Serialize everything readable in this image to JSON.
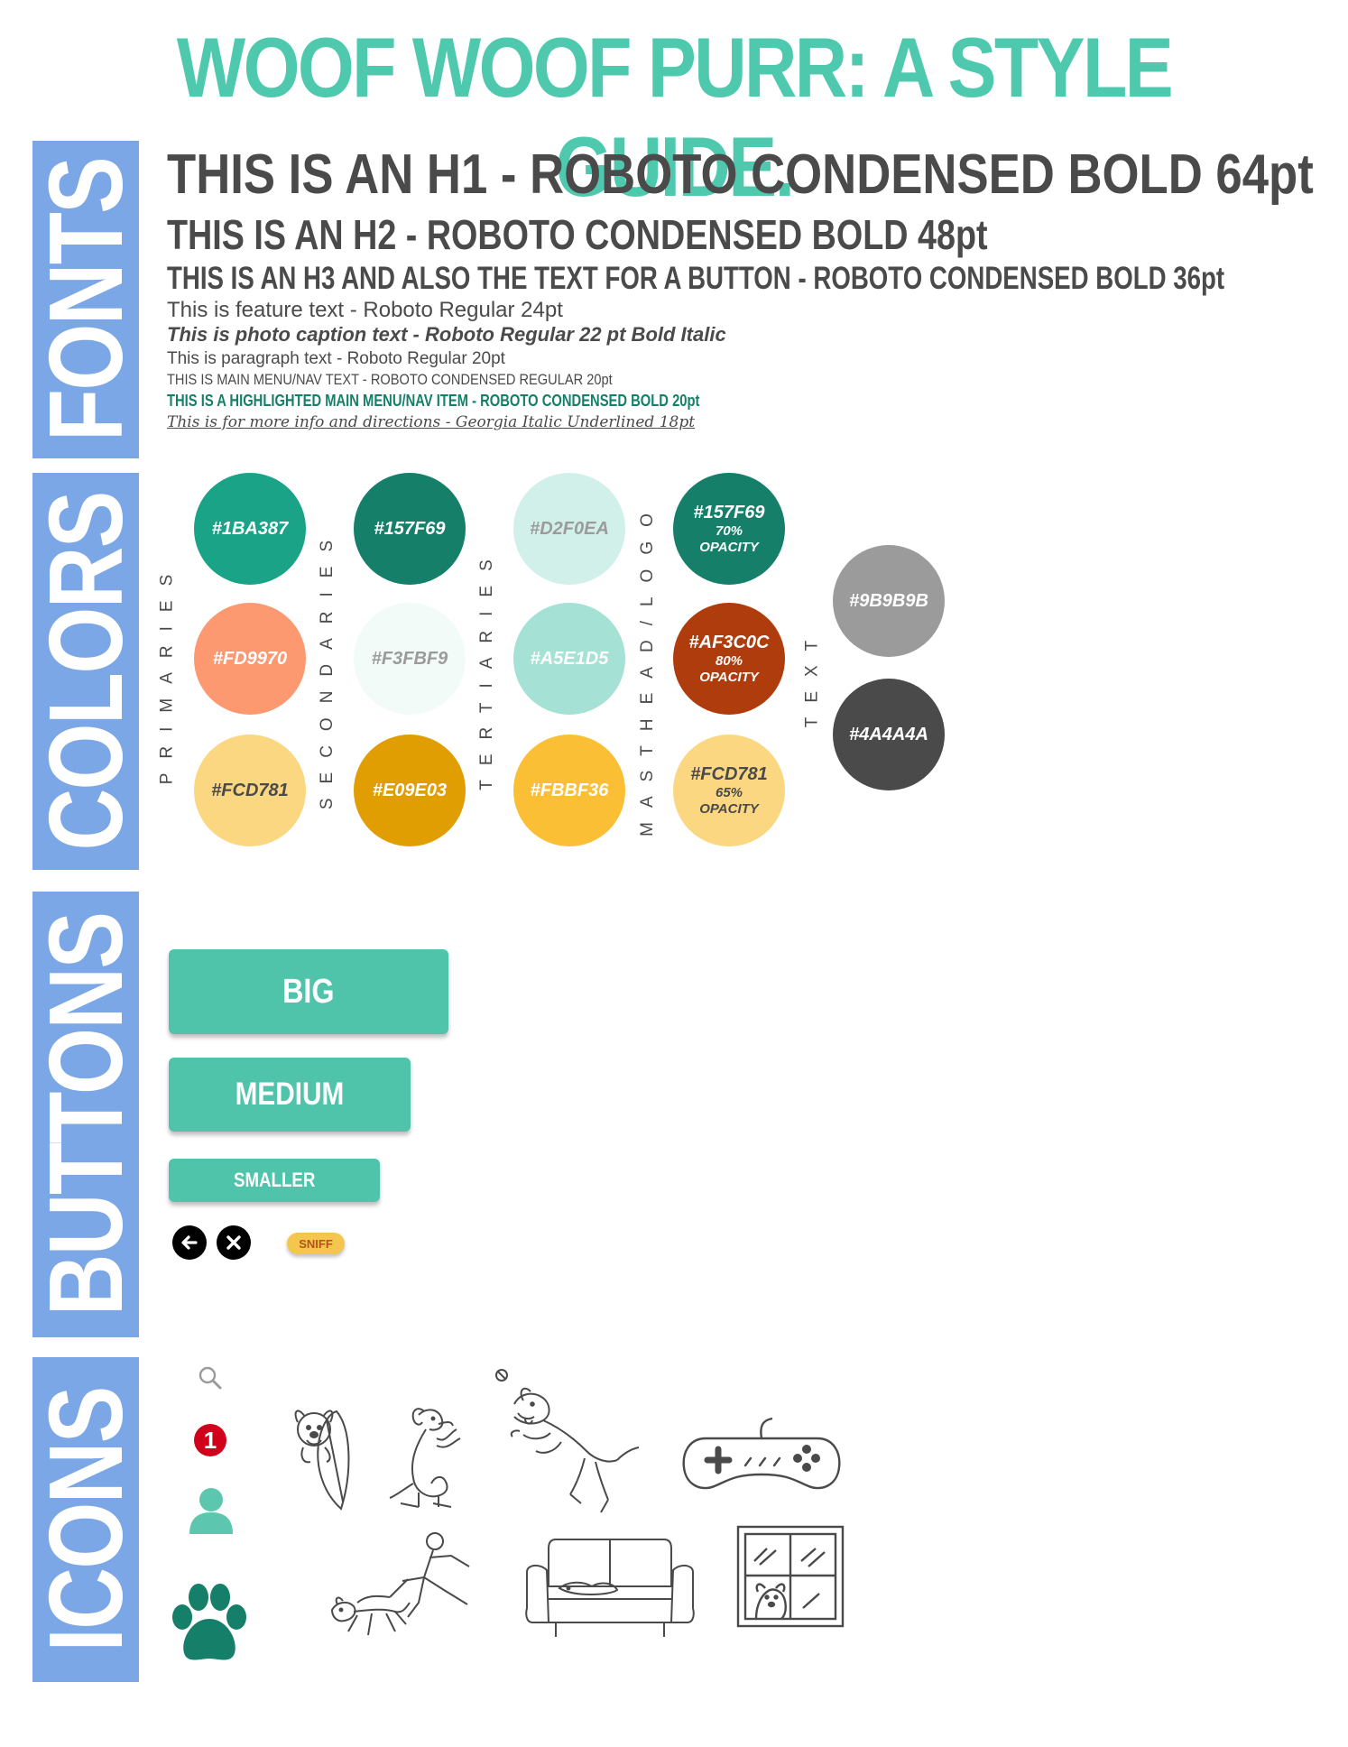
{
  "title": "WOOF WOOF PURR: A STYLE GUIDE.",
  "sections": {
    "fonts": "FONTS",
    "colors": "COLORS",
    "buttons": "BUTTONS",
    "icons": "ICONS"
  },
  "fonts": {
    "h1": "THIS IS AN H1 - ROBOTO CONDENSED BOLD 64pt",
    "h2": "THIS IS AN H2 - ROBOTO CONDENSED BOLD 48pt",
    "h3": "THIS IS AN H3 AND ALSO THE TEXT FOR A BUTTON - ROBOTO CONDENSED BOLD 36pt",
    "feature": "This is feature text - Roboto Regular 24pt",
    "caption": "This is photo caption text - Roboto Regular 22 pt  Bold Italic",
    "paragraph": "This is paragraph text - Roboto Regular 20pt",
    "nav": "THIS IS MAIN MENU/NAV TEXT - ROBOTO CONDENSED REGULAR 20pt",
    "nav_highlight": "THIS IS A HIGHLIGHTED MAIN MENU/NAV ITEM - ROBOTO CONDENSED BOLD 20pt",
    "info": "This is for more info and directions - Georgia Italic Underlined 18pt"
  },
  "color_groups": {
    "primaries": "PRIMARIES",
    "secondaries": "SECONDARIES",
    "tertiaries": "TERTIARIES",
    "masthead": "MASTHEAD/LOGO",
    "text": "TEXT"
  },
  "colors": {
    "primaries": [
      {
        "hex": "#1BA387",
        "color": "#1BA387",
        "text_color": "#ffffff"
      },
      {
        "hex": "#FD9970",
        "color": "#FD9970",
        "text_color": "#ffffff"
      },
      {
        "hex": "#FCD781",
        "color": "#FCD781",
        "text_color": "#4a4a4a"
      }
    ],
    "secondaries": [
      {
        "hex": "#157F69",
        "color": "#157F69",
        "text_color": "#ffffff"
      },
      {
        "hex": "#F3FBF9",
        "color": "#F3FBF9",
        "text_color": "#9b9b9b"
      },
      {
        "hex": "#E09E03",
        "color": "#E09E03",
        "text_color": "#ffffff"
      }
    ],
    "tertiaries": [
      {
        "hex": "#D2F0EA",
        "color": "#D2F0EA",
        "text_color": "#9b9b9b"
      },
      {
        "hex": "#A5E1D5",
        "color": "#A5E1D5",
        "text_color": "#ffffff"
      },
      {
        "hex": "#FBBF36",
        "color": "#FBBF36",
        "text_color": "#ffffff"
      }
    ],
    "masthead": [
      {
        "hex": "#157F69",
        "opacity": "70%",
        "opacity_label": "OPACITY",
        "color": "#157F69",
        "text_color": "#ffffff"
      },
      {
        "hex": "#AF3C0C",
        "opacity": "80%",
        "opacity_label": "OPACITY",
        "color": "#AF3C0C",
        "text_color": "#ffffff"
      },
      {
        "hex": "#FCD781",
        "opacity": "65%",
        "opacity_label": "OPACITY",
        "color": "#FCD781",
        "text_color": "#4a4a4a"
      }
    ],
    "text": [
      {
        "hex": "#9B9B9B",
        "color": "#9B9B9B",
        "text_color": "#ffffff"
      },
      {
        "hex": "#4A4A4A",
        "color": "#4A4A4A",
        "text_color": "#ffffff"
      }
    ]
  },
  "buttons": {
    "big": "BIG",
    "medium": "MEDIUM",
    "smaller": "SMALLER",
    "sniff": "SNIFF",
    "color": "#4FC4AA"
  },
  "icons": {
    "notification_count": "1",
    "names": [
      "search-icon",
      "notification-badge-icon",
      "user-icon",
      "paw-icon",
      "dog-surfing-icon",
      "dog-sitting-icon",
      "dog-jumping-icon",
      "game-controller-icon",
      "dog-walking-icon",
      "dog-on-couch-icon",
      "dog-in-window-icon"
    ]
  }
}
